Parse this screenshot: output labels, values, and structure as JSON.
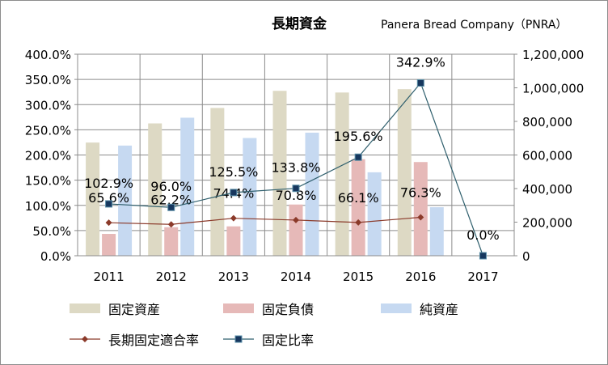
{
  "chart_data": {
    "type": "bar+line",
    "title": "長期資金",
    "subtitle": "Panera Bread Company（PNRA）",
    "categories": [
      "2011",
      "2012",
      "2013",
      "2014",
      "2015",
      "2016",
      "2017"
    ],
    "left_axis": {
      "min": 0,
      "max": 4.0,
      "step": 0.5,
      "ticks": [
        "0.0%",
        "50.0%",
        "100.0%",
        "150.0%",
        "200.0%",
        "250.0%",
        "300.0%",
        "350.0%",
        "400.0%"
      ]
    },
    "right_axis": {
      "min": 0,
      "max": 1200000,
      "step": 200000,
      "ticks": [
        "0",
        "200,000",
        "400,000",
        "600,000",
        "800,000",
        "1,000,000",
        "1,200,000"
      ]
    },
    "bar_series": [
      {
        "name": "固定資産",
        "color": "#ddd9c4",
        "values": [
          674000,
          788000,
          880000,
          982000,
          972000,
          992000,
          null
        ]
      },
      {
        "name": "固定負債",
        "color": "#e6b9b8",
        "values": [
          130000,
          170000,
          175000,
          305000,
          575000,
          558000,
          null
        ]
      },
      {
        "name": "純資産",
        "color": "#c6d9f1",
        "values": [
          656000,
          822000,
          701000,
          733000,
          497000,
          289000,
          null
        ]
      }
    ],
    "line_series": [
      {
        "name": "長期固定適合率",
        "color": "#8b3a2a",
        "values": [
          0.656,
          0.622,
          0.744,
          0.708,
          0.661,
          0.763,
          null
        ],
        "labels": [
          "65.6%",
          "62.2%",
          "74.4%",
          "70.8%",
          "66.1%",
          "76.3%",
          ""
        ]
      },
      {
        "name": "固定比率",
        "color": "#2f5f6d",
        "values": [
          1.029,
          0.96,
          1.255,
          1.338,
          1.956,
          3.429,
          0.0
        ],
        "labels": [
          "102.9%",
          "96.0%",
          "125.5%",
          "133.8%",
          "195.6%",
          "342.9%",
          "0.0%"
        ]
      }
    ]
  }
}
